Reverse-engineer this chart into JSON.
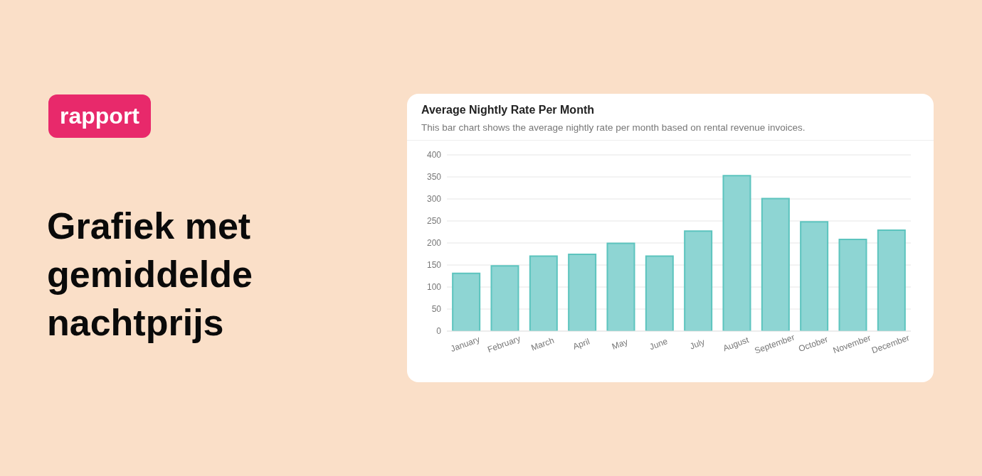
{
  "chart_data": {
    "type": "bar",
    "title": "Average Nightly Rate Per Month",
    "subtitle": "This bar chart shows the average nightly rate per month based on rental revenue invoices.",
    "annotations": [
      "rapport",
      "Grafiek met gemiddelde nachtprijs"
    ],
    "categories": [
      "January",
      "February",
      "March",
      "April",
      "May",
      "June",
      "July",
      "August",
      "September",
      "October",
      "November",
      "December"
    ],
    "values": [
      131,
      148,
      170,
      174,
      199,
      170,
      227,
      353,
      301,
      248,
      208,
      229
    ],
    "color": "#88d3d1",
    "ylim": [
      0,
      400
    ],
    "yticks": [
      0,
      50,
      100,
      150,
      200,
      250,
      300,
      350,
      400
    ],
    "grid": "y"
  }
}
